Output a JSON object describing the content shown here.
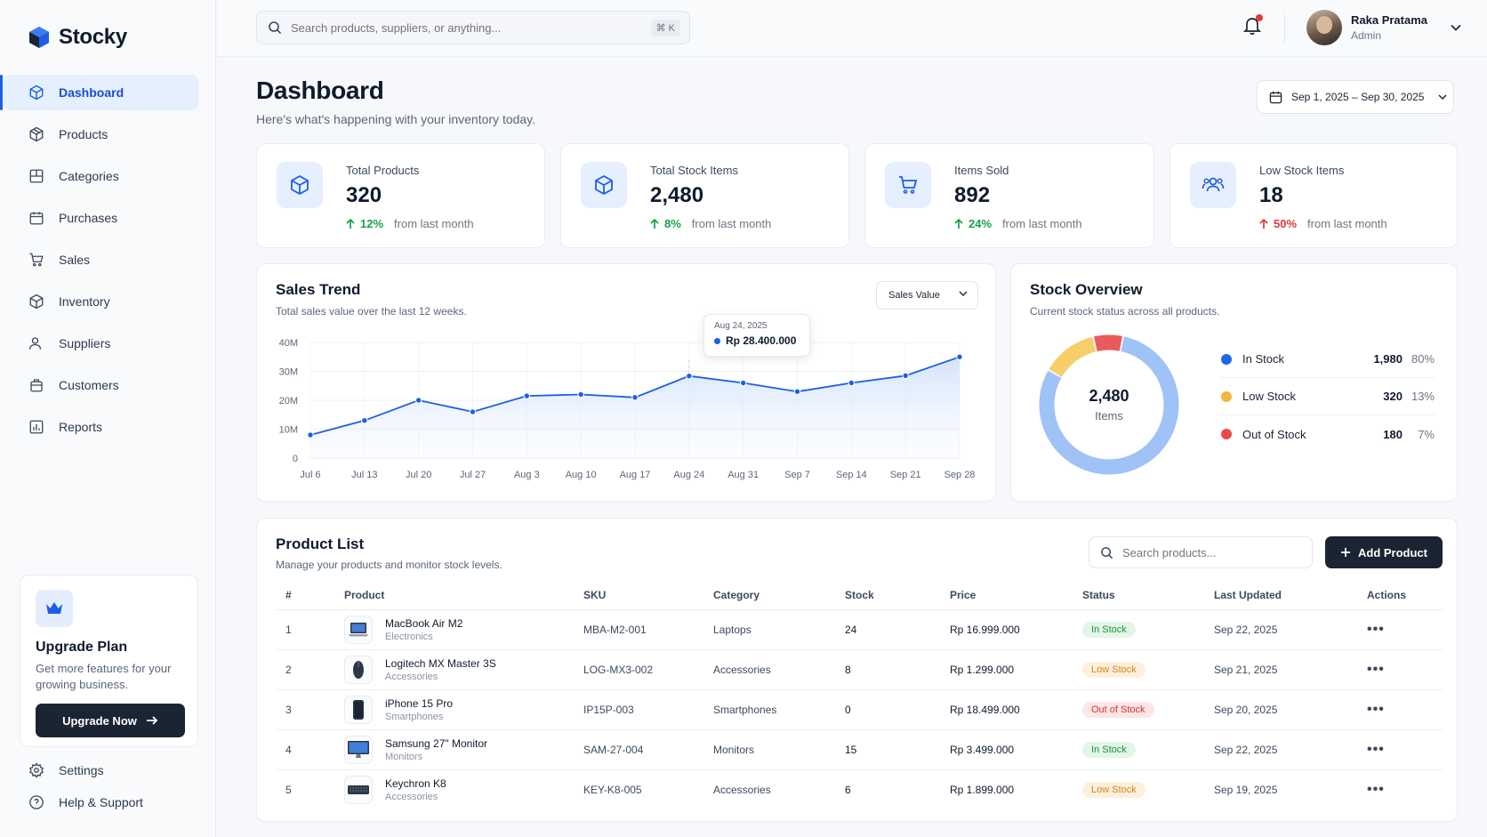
{
  "brand": {
    "name": "Stocky"
  },
  "sidebar": {
    "items": [
      {
        "label": "Dashboard",
        "icon": "cube-icon",
        "active": true
      },
      {
        "label": "Products",
        "icon": "box-icon"
      },
      {
        "label": "Categories",
        "icon": "categories-icon"
      },
      {
        "label": "Purchases",
        "icon": "purchases-icon"
      },
      {
        "label": "Sales",
        "icon": "cart-icon"
      },
      {
        "label": "Inventory",
        "icon": "inventory-icon"
      },
      {
        "label": "Suppliers",
        "icon": "suppliers-icon"
      },
      {
        "label": "Customers",
        "icon": "customers-icon"
      },
      {
        "label": "Reports",
        "icon": "reports-icon"
      }
    ],
    "upgrade": {
      "title": "Upgrade Plan",
      "desc": "Get more features for your growing business.",
      "button": "Upgrade Now"
    },
    "bottom": [
      {
        "label": "Settings",
        "icon": "gear-icon"
      },
      {
        "label": "Help & Support",
        "icon": "help-icon"
      }
    ]
  },
  "topbar": {
    "search_placeholder": "Search products, suppliers, or anything...",
    "shortcut": "⌘ K",
    "user": {
      "name": "Raka Pratama",
      "role": "Admin"
    }
  },
  "page": {
    "title": "Dashboard",
    "subtitle": "Here's what's happening with your inventory today.",
    "date_range": "Sep 1, 2025 – Sep 30, 2025"
  },
  "stats": [
    {
      "label": "Total Products",
      "value": "320",
      "change": "12%",
      "direction": "up",
      "suffix": "from last month",
      "icon": "cube-icon"
    },
    {
      "label": "Total Stock Items",
      "value": "2,480",
      "change": "8%",
      "direction": "up",
      "suffix": "from last month",
      "icon": "cube-icon"
    },
    {
      "label": "Items Sold",
      "value": "892",
      "change": "24%",
      "direction": "up",
      "suffix": "from last month",
      "icon": "cart-icon"
    },
    {
      "label": "Low Stock Items",
      "value": "18",
      "change": "50%",
      "direction": "down",
      "suffix": "from last month",
      "icon": "users-icon"
    }
  ],
  "sales_trend": {
    "title": "Sales Trend",
    "subtitle": "Total sales value over the last 12 weeks.",
    "select_value": "Sales Value",
    "tooltip": {
      "date": "Aug 24, 2025",
      "value": "Rp 28.400.000"
    }
  },
  "chart_data": {
    "type": "area",
    "title": "Sales Trend",
    "x": [
      "Jul 6",
      "Jul 13",
      "Jul 20",
      "Jul 27",
      "Aug 3",
      "Aug 10",
      "Aug 17",
      "Aug 24",
      "Aug 31",
      "Sep 7",
      "Sep 14",
      "Sep 21",
      "Sep 28"
    ],
    "series": [
      {
        "values": [
          8,
          13,
          20,
          16,
          21.5,
          22,
          21,
          28.4,
          26,
          23,
          26,
          28.5,
          35
        ]
      }
    ],
    "y_ticks": [
      "0",
      "10M",
      "20M",
      "30M",
      "40M"
    ],
    "ylim": [
      0,
      40
    ],
    "grid": true,
    "colors": {
      "line": "#1d5ee8"
    }
  },
  "stock_overview": {
    "title": "Stock Overview",
    "subtitle": "Current stock status across all products.",
    "total": "2,480",
    "total_label": "Items",
    "segments": [
      {
        "label": "In Stock",
        "count": "1,980",
        "pct": "80%",
        "value": 80,
        "color": "#9fc2f7",
        "dot": "#1d6ae8"
      },
      {
        "label": "Low Stock",
        "count": "320",
        "pct": "13%",
        "value": 13,
        "color": "#f6cf6b",
        "dot": "#f4b83a"
      },
      {
        "label": "Out of Stock",
        "count": "180",
        "pct": "7%",
        "value": 7,
        "color": "#ea5a5a",
        "dot": "#e84a4a"
      }
    ]
  },
  "product_list": {
    "title": "Product List",
    "subtitle": "Manage your products and monitor stock levels.",
    "search_placeholder": "Search products...",
    "add_button": "Add Product",
    "columns": [
      "#",
      "Product",
      "SKU",
      "Category",
      "Stock",
      "Price",
      "Status",
      "Last Updated",
      "Actions"
    ],
    "rows": [
      {
        "n": "1",
        "name": "MacBook Air M2",
        "cat": "Electronics",
        "sku": "MBA-M2-001",
        "category": "Laptops",
        "stock": "24",
        "price": "Rp 16.999.000",
        "status": "In Stock",
        "status_kind": "in",
        "updated": "Sep 22, 2025",
        "thumb": "laptop-icon"
      },
      {
        "n": "2",
        "name": "Logitech MX Master 3S",
        "cat": "Accessories",
        "sku": "LOG-MX3-002",
        "category": "Accessories",
        "stock": "8",
        "price": "Rp 1.299.000",
        "status": "Low Stock",
        "status_kind": "low",
        "updated": "Sep 21, 2025",
        "thumb": "mouse-icon"
      },
      {
        "n": "3",
        "name": "iPhone 15 Pro",
        "cat": "Smartphones",
        "sku": "IP15P-003",
        "category": "Smartphones",
        "stock": "0",
        "price": "Rp 18.499.000",
        "status": "Out of Stock",
        "status_kind": "out",
        "updated": "Sep 20, 2025",
        "thumb": "phone-icon"
      },
      {
        "n": "4",
        "name": "Samsung 27\" Monitor",
        "cat": "Monitors",
        "sku": "SAM-27-004",
        "category": "Monitors",
        "stock": "15",
        "price": "Rp 3.499.000",
        "status": "In Stock",
        "status_kind": "in",
        "updated": "Sep 22, 2025",
        "thumb": "monitor-icon"
      },
      {
        "n": "5",
        "name": "Keychron K8",
        "cat": "Accessories",
        "sku": "KEY-K8-005",
        "category": "Accessories",
        "stock": "6",
        "price": "Rp 1.899.000",
        "status": "Low Stock",
        "status_kind": "low",
        "updated": "Sep 19, 2025",
        "thumb": "keyboard-icon"
      }
    ]
  }
}
